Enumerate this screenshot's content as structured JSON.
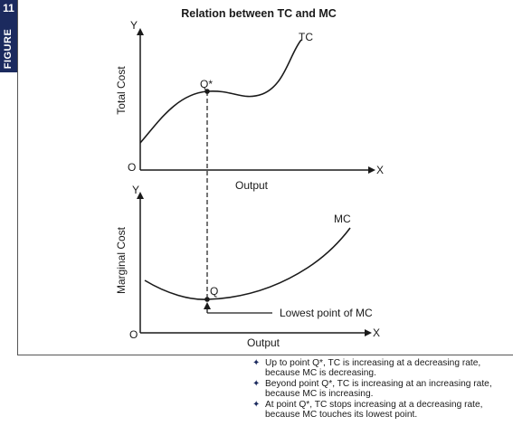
{
  "figure": {
    "badge_number": "11",
    "badge_word": "FIGURE"
  },
  "title": "Relation between TC and MC",
  "top_chart": {
    "y_axis_letter": "Y",
    "x_axis_letter": "X",
    "origin_label": "O",
    "y_label": "Total Cost",
    "x_label": "Output",
    "curve_label": "TC",
    "point_label": "Q*"
  },
  "bottom_chart": {
    "y_axis_letter": "Y",
    "x_axis_letter": "X",
    "origin_label": "O",
    "y_label": "Marginal Cost",
    "x_label": "Output",
    "curve_label": "MC",
    "point_label": "Q",
    "annotation": "Lowest point of MC"
  },
  "notes": [
    "Up to point Q*, TC is increasing at a decreasing rate, because MC is decreasing.",
    "Beyond point Q*, TC is increasing at an increasing rate, because MC is increasing.",
    "At point Q*, TC stops increasing at a decreasing rate, because MC touches its lowest point."
  ],
  "colors": {
    "badge": "#1b2a5e",
    "ink": "#1a1a1a",
    "bullet": "#1b2a5e"
  }
}
